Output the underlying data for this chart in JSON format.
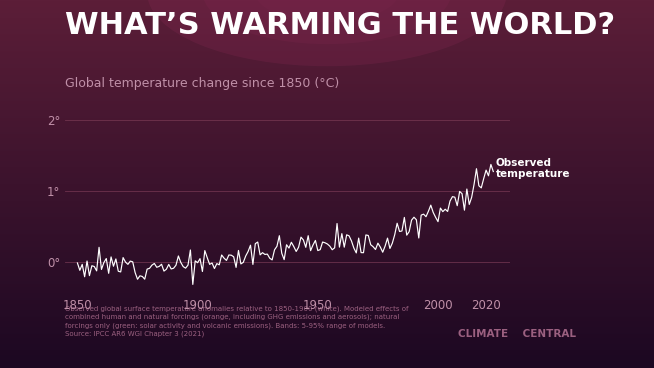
{
  "title": "WHAT’S WARMING THE WORLD?",
  "subtitle": "Global temperature change since 1850 (°C)",
  "xlabel_ticks": [
    1850,
    1900,
    1950,
    2000,
    2020
  ],
  "ylabel_ticks": [
    0,
    1,
    2
  ],
  "ylabel_labels": [
    "0°",
    "1°",
    "2°"
  ],
  "xlim": [
    1845,
    2030
  ],
  "ylim": [
    -0.45,
    2.4
  ],
  "line_color": "#ffffff",
  "annotation_text": "Observed\ntemperature",
  "annotation_color": "#ffffff",
  "bg_color_top": "#5c1e38",
  "bg_color_mid": "#3d1230",
  "bg_color_bottom": "#1c0822",
  "grid_color": "#7a3a55",
  "tick_color": "#c090a8",
  "source_text": "Observed global surface temperature anomalies relative to 1850-1900 (white). Modeled effects of\ncombined human and natural forcings (orange, including GHG emissions and aerosols); natural\nforcings only (green: solar activity and volcanic emissions). Bands: 5-95% range of models.\nSource: IPCC AR6 WGI Chapter 3 (2021)",
  "credit_text": "CLIMATE    CENTRAL",
  "title_fontsize": 22,
  "subtitle_fontsize": 9,
  "tick_fontsize": 8.5,
  "source_fontsize": 5.0,
  "credit_fontsize": 7.5,
  "annotation_fontsize": 7.5
}
